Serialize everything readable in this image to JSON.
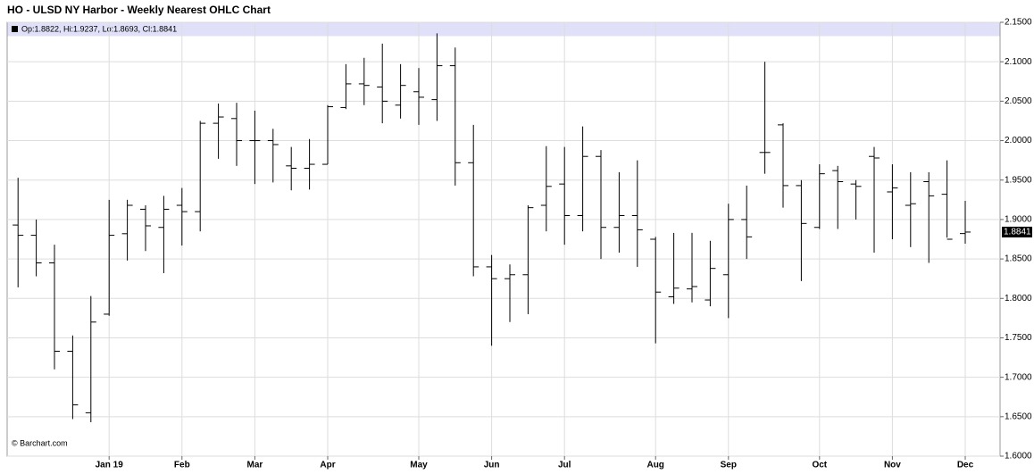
{
  "chart_data": {
    "type": "ohlc",
    "title": "HO - ULSD NY Harbor - Weekly Nearest OHLC Chart",
    "info": "Op:1.8822, Hi:1.9237, Lo:1.8693, Cl:1.8841",
    "watermark": "© Barchart.com",
    "color": "#000000",
    "grid": true,
    "categories": [
      null,
      null,
      null,
      null,
      null,
      "Jan 19",
      null,
      null,
      null,
      "Feb",
      null,
      null,
      null,
      "Mar",
      null,
      null,
      null,
      "Apr",
      null,
      null,
      null,
      null,
      "May",
      null,
      null,
      null,
      "Jun",
      null,
      null,
      null,
      "Jul",
      null,
      null,
      null,
      null,
      "Aug",
      null,
      null,
      null,
      "Sep",
      null,
      null,
      null,
      null,
      "Oct",
      null,
      null,
      null,
      "Nov",
      null,
      null,
      null,
      "Dec"
    ],
    "open": [
      1.893,
      1.88,
      1.845,
      1.733,
      1.655,
      1.78,
      1.882,
      1.913,
      1.89,
      1.918,
      1.91,
      2.022,
      2.028,
      2.0,
      2.0,
      1.968,
      1.965,
      1.97,
      2.042,
      2.072,
      2.068,
      2.045,
      2.062,
      2.052,
      2.095,
      1.972,
      1.84,
      1.825,
      1.83,
      1.918,
      1.945,
      1.905,
      1.98,
      1.89,
      1.905,
      1.875,
      1.802,
      1.812,
      1.798,
      1.83,
      1.9,
      1.985,
      2.02,
      1.943,
      1.89,
      1.962,
      1.945,
      1.98,
      1.935,
      1.918,
      1.948,
      1.932,
      1.8822
    ],
    "high": [
      1.953,
      1.9,
      1.868,
      1.753,
      1.803,
      1.925,
      1.925,
      1.918,
      1.93,
      1.94,
      2.025,
      2.047,
      2.048,
      2.038,
      2.015,
      1.992,
      2.002,
      2.045,
      2.097,
      2.105,
      2.123,
      2.097,
      2.092,
      2.136,
      2.118,
      2.02,
      1.855,
      1.843,
      1.918,
      1.993,
      1.992,
      2.018,
      1.988,
      1.96,
      1.975,
      1.878,
      1.883,
      1.883,
      1.873,
      1.92,
      1.943,
      2.1,
      2.022,
      1.95,
      1.97,
      1.968,
      1.95,
      1.992,
      1.97,
      1.96,
      1.96,
      1.975,
      1.9237
    ],
    "low": [
      1.814,
      1.828,
      1.71,
      1.647,
      1.643,
      1.778,
      1.848,
      1.86,
      1.832,
      1.867,
      1.885,
      1.977,
      1.968,
      1.945,
      1.947,
      1.937,
      1.938,
      1.97,
      2.04,
      2.045,
      2.022,
      2.028,
      2.02,
      2.025,
      1.943,
      1.828,
      1.74,
      1.77,
      1.78,
      1.885,
      1.868,
      1.885,
      1.85,
      1.858,
      1.84,
      1.743,
      1.793,
      1.795,
      1.79,
      1.775,
      1.85,
      1.958,
      1.915,
      1.822,
      1.888,
      1.888,
      1.9,
      1.858,
      1.875,
      1.865,
      1.845,
      1.877,
      1.8693
    ],
    "close": [
      1.88,
      1.845,
      1.733,
      1.665,
      1.77,
      1.88,
      1.918,
      1.892,
      1.913,
      1.91,
      2.022,
      2.03,
      2.0,
      2.0,
      1.995,
      1.965,
      1.97,
      2.043,
      2.072,
      2.07,
      2.05,
      2.07,
      2.055,
      2.095,
      1.972,
      1.84,
      1.825,
      1.83,
      1.915,
      1.942,
      1.905,
      1.98,
      1.89,
      1.905,
      1.887,
      1.808,
      1.813,
      1.815,
      1.838,
      1.9,
      1.878,
      1.985,
      1.943,
      1.895,
      1.958,
      1.948,
      1.942,
      1.978,
      1.94,
      1.92,
      1.93,
      1.875,
      1.8841
    ],
    "ylim": [
      1.6,
      2.15
    ],
    "yticks": [
      {
        "value": 1.6,
        "label": "1.6000"
      },
      {
        "value": 1.65,
        "label": "1.6500"
      },
      {
        "value": 1.7,
        "label": "1.7000"
      },
      {
        "value": 1.75,
        "label": "1.7500"
      },
      {
        "value": 1.8,
        "label": "1.8000"
      },
      {
        "value": 1.85,
        "label": "1.8500"
      },
      {
        "value": 1.9,
        "label": "1.9000"
      },
      {
        "value": 1.95,
        "label": "1.9500"
      },
      {
        "value": 2.0,
        "label": "2.0000"
      },
      {
        "value": 2.05,
        "label": "2.0500"
      },
      {
        "value": 2.1,
        "label": "2.1000"
      },
      {
        "value": 2.15,
        "label": "2.1500"
      }
    ]
  }
}
